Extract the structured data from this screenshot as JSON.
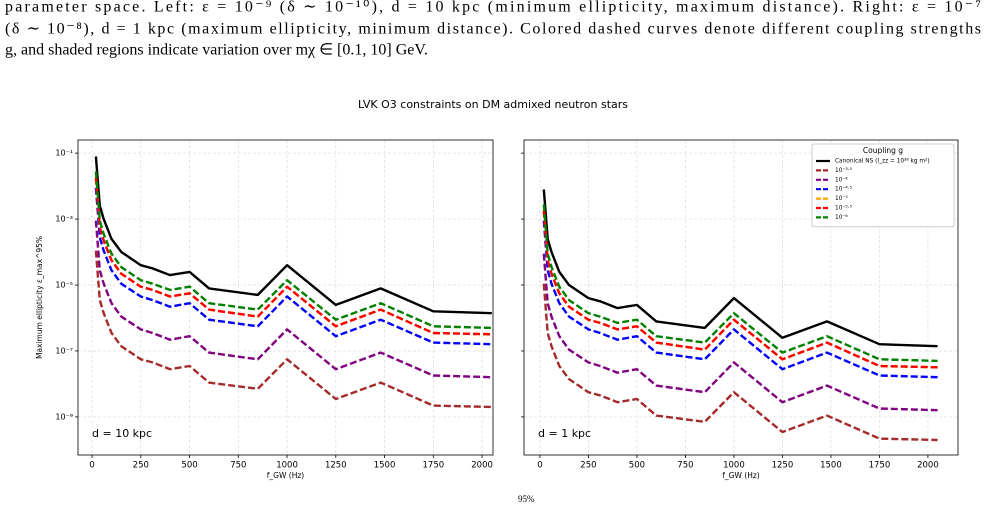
{
  "caption_lines": [
    "parameter space. Left: ε = 10⁻⁹ (δ ∼ 10⁻¹⁰), d = 10 kpc (minimum ellipticity, maximum distance). Right: ε = 10⁻⁷",
    "(δ ∼ 10⁻⁸), d = 1 kpc (maximum ellipticity, minimum distance). Colored dashed curves denote different coupling strengths",
    "g, and shaded regions indicate variation over mχ ∈ [0.1, 10] GeV."
  ],
  "figure_title": "LVK O3 constraints on DM admixed neutron stars",
  "footer_fragment": "95%",
  "chart_data": [
    {
      "type": "line",
      "log_y": true,
      "grid": true,
      "xlabel": "f_GW (Hz)",
      "ylabel": "Maximum ellipticity ε_max^95%",
      "annotation": "d = 10 kpc",
      "xlim": [
        -72,
        2056
      ],
      "ylim": [
        7e-11,
        0.25
      ],
      "xticks": [
        0,
        250,
        500,
        750,
        1000,
        1250,
        1500,
        1750,
        2000
      ],
      "yticks": [
        {
          "value": 0.1,
          "label": "10⁻¹"
        },
        {
          "value": 0.001,
          "label": "10⁻³"
        },
        {
          "value": 1e-05,
          "label": "10⁻⁵"
        },
        {
          "value": 1e-07,
          "label": "10⁻⁷"
        },
        {
          "value": 1e-09,
          "label": "10⁻⁹"
        }
      ],
      "x": [
        20,
        40,
        60,
        100,
        150,
        250,
        310,
        400,
        500,
        600,
        850,
        1000,
        1250,
        1480,
        1750,
        2050
      ],
      "series": [
        {
          "color": "#000000",
          "linestyle": "solid",
          "values": [
            0.079,
            0.0025,
            0.001,
            0.00025,
            0.0001,
            4e-05,
            3.2e-05,
            2e-05,
            2.5e-05,
            7.9e-06,
            5e-06,
            4e-05,
            2.5e-06,
            7.9e-06,
            1.6e-06,
            1.4e-06
          ]
        },
        {
          "color": "#a52a2a",
          "linestyle": "dashed",
          "values": [
            0.00011,
            3.5e-06,
            1.4e-06,
            3.5e-07,
            1.4e-07,
            5.6e-08,
            4.5e-08,
            2.8e-08,
            3.5e-08,
            1.1e-08,
            7.1e-09,
            5.6e-08,
            3.5e-09,
            1.1e-08,
            2.2e-09,
            2e-09
          ]
        },
        {
          "color": "#800080",
          "linestyle": "dashed",
          "values": [
            0.00089,
            2.8e-05,
            1.1e-05,
            2.8e-06,
            1.1e-06,
            4.5e-07,
            3.5e-07,
            2.2e-07,
            2.8e-07,
            8.9e-08,
            5.6e-08,
            4.5e-07,
            2.8e-08,
            8.9e-08,
            1.8e-08,
            1.6e-08
          ]
        },
        {
          "color": "#0000ff",
          "linestyle": "dashed",
          "values": [
            0.0089,
            0.00028,
            0.00011,
            2.8e-05,
            1.1e-05,
            4.5e-06,
            3.5e-06,
            2.2e-06,
            2.8e-06,
            8.9e-07,
            5.6e-07,
            4.5e-06,
            2.8e-07,
            8.9e-07,
            1.8e-07,
            1.6e-07
          ]
        },
        {
          "color": "#ffa500",
          "linestyle": "dashed",
          "values": [
            0.018,
            0.00056,
            0.00022,
            5.6e-05,
            2.2e-05,
            8.9e-06,
            7.1e-06,
            4.5e-06,
            5.6e-06,
            1.8e-06,
            1.1e-06,
            8.9e-06,
            5.6e-07,
            1.8e-06,
            3.5e-07,
            3.2e-07
          ]
        },
        {
          "color": "#ff0000",
          "linestyle": "dashed",
          "values": [
            0.018,
            0.00056,
            0.00022,
            5.6e-05,
            2.2e-05,
            8.9e-06,
            7.1e-06,
            4.5e-06,
            5.6e-06,
            1.8e-06,
            1.1e-06,
            8.9e-06,
            5.6e-07,
            1.8e-06,
            3.5e-07,
            3.2e-07
          ]
        },
        {
          "color": "#008000",
          "linestyle": "dashed",
          "values": [
            0.028,
            0.00089,
            0.00035,
            8.9e-05,
            3.5e-05,
            1.4e-05,
            1.1e-05,
            7.1e-06,
            8.9e-06,
            2.8e-06,
            1.8e-06,
            1.4e-05,
            8.9e-07,
            2.8e-06,
            5.6e-07,
            5e-07
          ]
        }
      ]
    },
    {
      "type": "line",
      "log_y": true,
      "grid": true,
      "xlabel": "f_GW (Hz)",
      "annotation": "d = 1 kpc",
      "legend": "upper right",
      "legend_title": "Coupling g",
      "xlim": [
        -82,
        2155
      ],
      "ylim": [
        7e-11,
        0.25
      ],
      "xticks": [
        0,
        250,
        500,
        750,
        1000,
        1250,
        1500,
        1750,
        2000
      ],
      "yticks": [
        0.1,
        0.001,
        1e-05,
        1e-07,
        1e-09
      ],
      "y_tick_labels": false,
      "x": [
        20,
        40,
        60,
        100,
        150,
        250,
        310,
        400,
        500,
        600,
        850,
        1000,
        1250,
        1480,
        1750,
        2050
      ],
      "series": [
        {
          "name": "Canonical NS (I_zz = 10³⁸ kg m²)",
          "color": "#000000",
          "linestyle": "solid",
          "values": [
            0.0079,
            0.00025,
            0.0001,
            2.5e-05,
            1e-05,
            4e-06,
            3.2e-06,
            2e-06,
            2.5e-06,
            7.9e-07,
            5e-07,
            4e-06,
            2.5e-07,
            7.9e-07,
            1.6e-07,
            1.4e-07
          ]
        },
        {
          "name": "10⁻³·⁵",
          "color": "#a52a2a",
          "linestyle": "dashed",
          "values": [
            1.1e-05,
            3.5e-07,
            1.4e-07,
            3.5e-08,
            1.4e-08,
            5.6e-09,
            4.5e-09,
            2.8e-09,
            3.5e-09,
            1.1e-09,
            7.1e-10,
            5.6e-09,
            3.5e-10,
            1.1e-09,
            2.2e-10,
            2e-10
          ]
        },
        {
          "name": "10⁻⁴",
          "color": "#800080",
          "linestyle": "dashed",
          "values": [
            8.9e-05,
            2.8e-06,
            1.1e-06,
            2.8e-07,
            1.1e-07,
            4.5e-08,
            3.5e-08,
            2.2e-08,
            2.8e-08,
            8.9e-09,
            5.6e-09,
            4.5e-08,
            2.8e-09,
            8.9e-09,
            1.8e-09,
            1.6e-09
          ]
        },
        {
          "name": "10⁻⁴·⁵",
          "color": "#0000ff",
          "linestyle": "dashed",
          "values": [
            0.00089,
            2.8e-05,
            1.1e-05,
            2.8e-06,
            1.1e-06,
            4.5e-07,
            3.5e-07,
            2.2e-07,
            2.8e-07,
            8.9e-08,
            5.6e-08,
            4.5e-07,
            2.8e-08,
            8.9e-08,
            1.8e-08,
            1.6e-08
          ]
        },
        {
          "name": "10⁻⁵",
          "color": "#ffa500",
          "linestyle": "dashed",
          "values": [
            0.0018,
            5.6e-05,
            2.2e-05,
            5.6e-06,
            2.2e-06,
            8.9e-07,
            7.1e-07,
            4.5e-07,
            5.6e-07,
            1.8e-07,
            1.1e-07,
            8.9e-07,
            5.6e-08,
            1.8e-07,
            3.5e-08,
            3.2e-08
          ]
        },
        {
          "name": "10⁻⁵·⁵",
          "color": "#ff0000",
          "linestyle": "dashed",
          "values": [
            0.0018,
            5.6e-05,
            2.2e-05,
            5.6e-06,
            2.2e-06,
            8.9e-07,
            7.1e-07,
            4.5e-07,
            5.6e-07,
            1.8e-07,
            1.1e-07,
            8.9e-07,
            5.6e-08,
            1.8e-07,
            3.5e-08,
            3.2e-08
          ]
        },
        {
          "name": "10⁻⁶",
          "color": "#008000",
          "linestyle": "dashed",
          "values": [
            0.0028,
            8.9e-05,
            3.5e-05,
            8.9e-06,
            3.5e-06,
            1.4e-06,
            1.1e-06,
            7.1e-07,
            8.9e-07,
            2.8e-07,
            1.8e-07,
            1.4e-06,
            8.9e-08,
            2.8e-07,
            5.6e-08,
            5e-08
          ]
        }
      ]
    }
  ]
}
